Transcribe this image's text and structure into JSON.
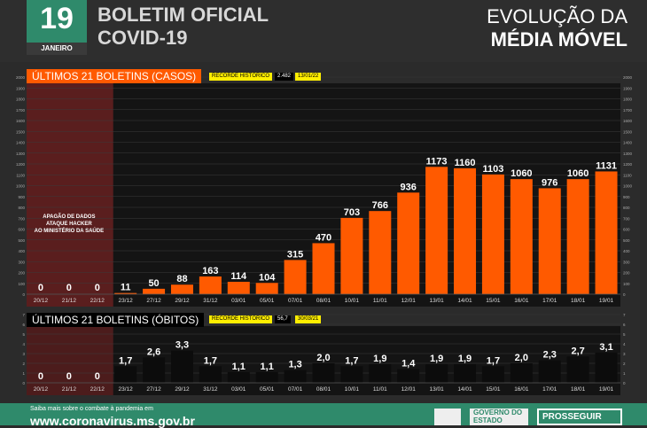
{
  "header": {
    "day": "19",
    "month": "JANEIRO",
    "line1": "BOLETIM OFICIAL",
    "line2": "COVID-19",
    "right1": "EVOLUÇÃO DA",
    "right2": "MÉDIA MÓVEL"
  },
  "colors": {
    "cases": "#ff5a00",
    "deaths": "#0c0c0c",
    "accent": "#2f8a6b",
    "highlight": "#ffee00",
    "hacker_zone": "#5a1e1e"
  },
  "chart_data": [
    {
      "type": "bar",
      "title": "ÚLTIMOS 21 BOLETINS (CASOS)",
      "record_label": "RECORDE HISTÓRICO",
      "record_value": "2.482",
      "record_date": "13/01/22",
      "annotation": [
        "APAGÃO DE DADOS",
        "ATAQUE HACKER",
        "AO MINISTÉRIO DA SAÚDE"
      ],
      "categories": [
        "20/12",
        "21/12",
        "22/12",
        "23/12",
        "27/12",
        "29/12",
        "31/12",
        "03/01",
        "05/01",
        "07/01",
        "08/01",
        "10/01",
        "11/01",
        "12/01",
        "13/01",
        "14/01",
        "15/01",
        "16/01",
        "17/01",
        "18/01",
        "19/01"
      ],
      "values": [
        0,
        0,
        0,
        11,
        50,
        88,
        163,
        114,
        104,
        315,
        470,
        703,
        766,
        936,
        1173,
        1160,
        1103,
        1060,
        976,
        1060,
        1131
      ],
      "value_labels": [
        "0",
        "0",
        "0",
        "11",
        "50",
        "88",
        "163",
        "114",
        "104",
        "315",
        "470",
        "703",
        "766",
        "936",
        "1173",
        "1160",
        "1103",
        "1060",
        "976",
        "1060",
        "1131"
      ],
      "ylim": [
        0,
        2000
      ],
      "yticks": [
        0,
        100,
        200,
        300,
        400,
        500,
        600,
        700,
        800,
        900,
        1000,
        1100,
        1200,
        1300,
        1400,
        1500,
        1600,
        1700,
        1800,
        1900,
        2000
      ]
    },
    {
      "type": "bar",
      "title": "ÚLTIMOS 21 BOLETINS (ÓBITOS)",
      "record_label": "RECORDE HISTÓRICO",
      "record_value": "56,7",
      "record_date": "30/03/21",
      "categories": [
        "20/12",
        "21/12",
        "22/12",
        "23/12",
        "27/12",
        "29/12",
        "31/12",
        "03/01",
        "05/01",
        "07/01",
        "08/01",
        "10/01",
        "11/01",
        "12/01",
        "13/01",
        "14/01",
        "15/01",
        "16/01",
        "17/01",
        "18/01",
        "19/01"
      ],
      "values": [
        0,
        0,
        0,
        1.7,
        2.6,
        3.3,
        1.7,
        1.1,
        1.1,
        1.3,
        2.0,
        1.7,
        1.9,
        1.4,
        1.9,
        1.9,
        1.7,
        2.0,
        2.3,
        2.7,
        3.1
      ],
      "value_labels": [
        "0",
        "0",
        "0",
        "1,7",
        "2,6",
        "3,3",
        "1,7",
        "1,1",
        "1,1",
        "1,3",
        "2,0",
        "1,7",
        "1,9",
        "1,4",
        "1,9",
        "1,9",
        "1,7",
        "2,0",
        "2,3",
        "2,7",
        "3,1"
      ],
      "ylim": [
        0,
        7
      ],
      "yticks": [
        0,
        1,
        2,
        3,
        4,
        5,
        6,
        7
      ]
    }
  ],
  "footer": {
    "small": "Saiba mais sobre o combate à pandemia em",
    "url": "www.coronavirus.ms.gov.br",
    "gov": "GOVERNO DO ESTADO",
    "prog": "PROSSEGUIR"
  }
}
